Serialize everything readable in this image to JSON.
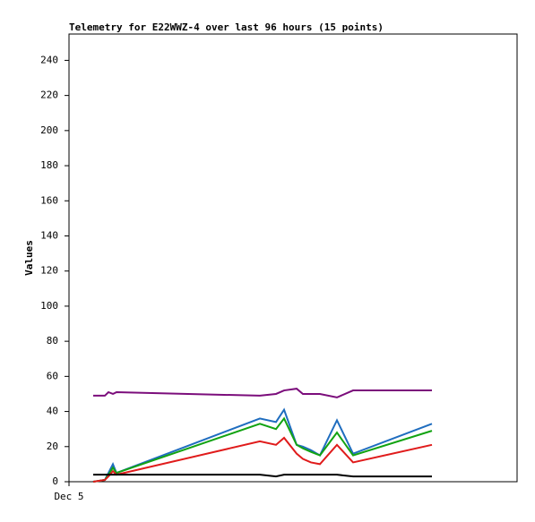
{
  "chart_data": {
    "type": "line",
    "title": "Telemetry for E22WWZ-4 over last 96 hours (15 points)",
    "y_label": "Values",
    "x": [
      5.4,
      8,
      8.8,
      9.8,
      10.6,
      42.6,
      46.2,
      48,
      50.8,
      52.2,
      54,
      56,
      59.8,
      63.4,
      81
    ],
    "xlim": [
      0,
      100
    ],
    "xticks": [
      {
        "value": 0,
        "label": "Dec 5"
      }
    ],
    "ylim": [
      0,
      255
    ],
    "yticks": [
      0,
      20,
      40,
      60,
      80,
      100,
      120,
      140,
      160,
      180,
      200,
      220,
      240
    ],
    "series": [
      {
        "color": "#7b0d7b",
        "values": [
          49,
          49,
          51,
          50,
          51,
          49,
          50,
          52,
          53,
          50,
          50,
          50,
          48,
          52,
          52
        ]
      },
      {
        "color": "#1f6dbf",
        "values": [
          0,
          1,
          5,
          10,
          5,
          36,
          34,
          41,
          21,
          20,
          18,
          15,
          35,
          16,
          33
        ]
      },
      {
        "color": "#12a312",
        "values": [
          0,
          1,
          4,
          8,
          5,
          33,
          30,
          36,
          21,
          19,
          17,
          15,
          28,
          15,
          29
        ]
      },
      {
        "color": "#e01b1b",
        "values": [
          0,
          1,
          3,
          6,
          4,
          23,
          21,
          25,
          16,
          13,
          11,
          10,
          21,
          11,
          21
        ]
      },
      {
        "color": "#000000",
        "values": [
          4,
          4,
          4,
          4,
          4,
          4,
          3,
          4,
          4,
          4,
          4,
          4,
          4,
          3,
          3
        ]
      }
    ]
  }
}
